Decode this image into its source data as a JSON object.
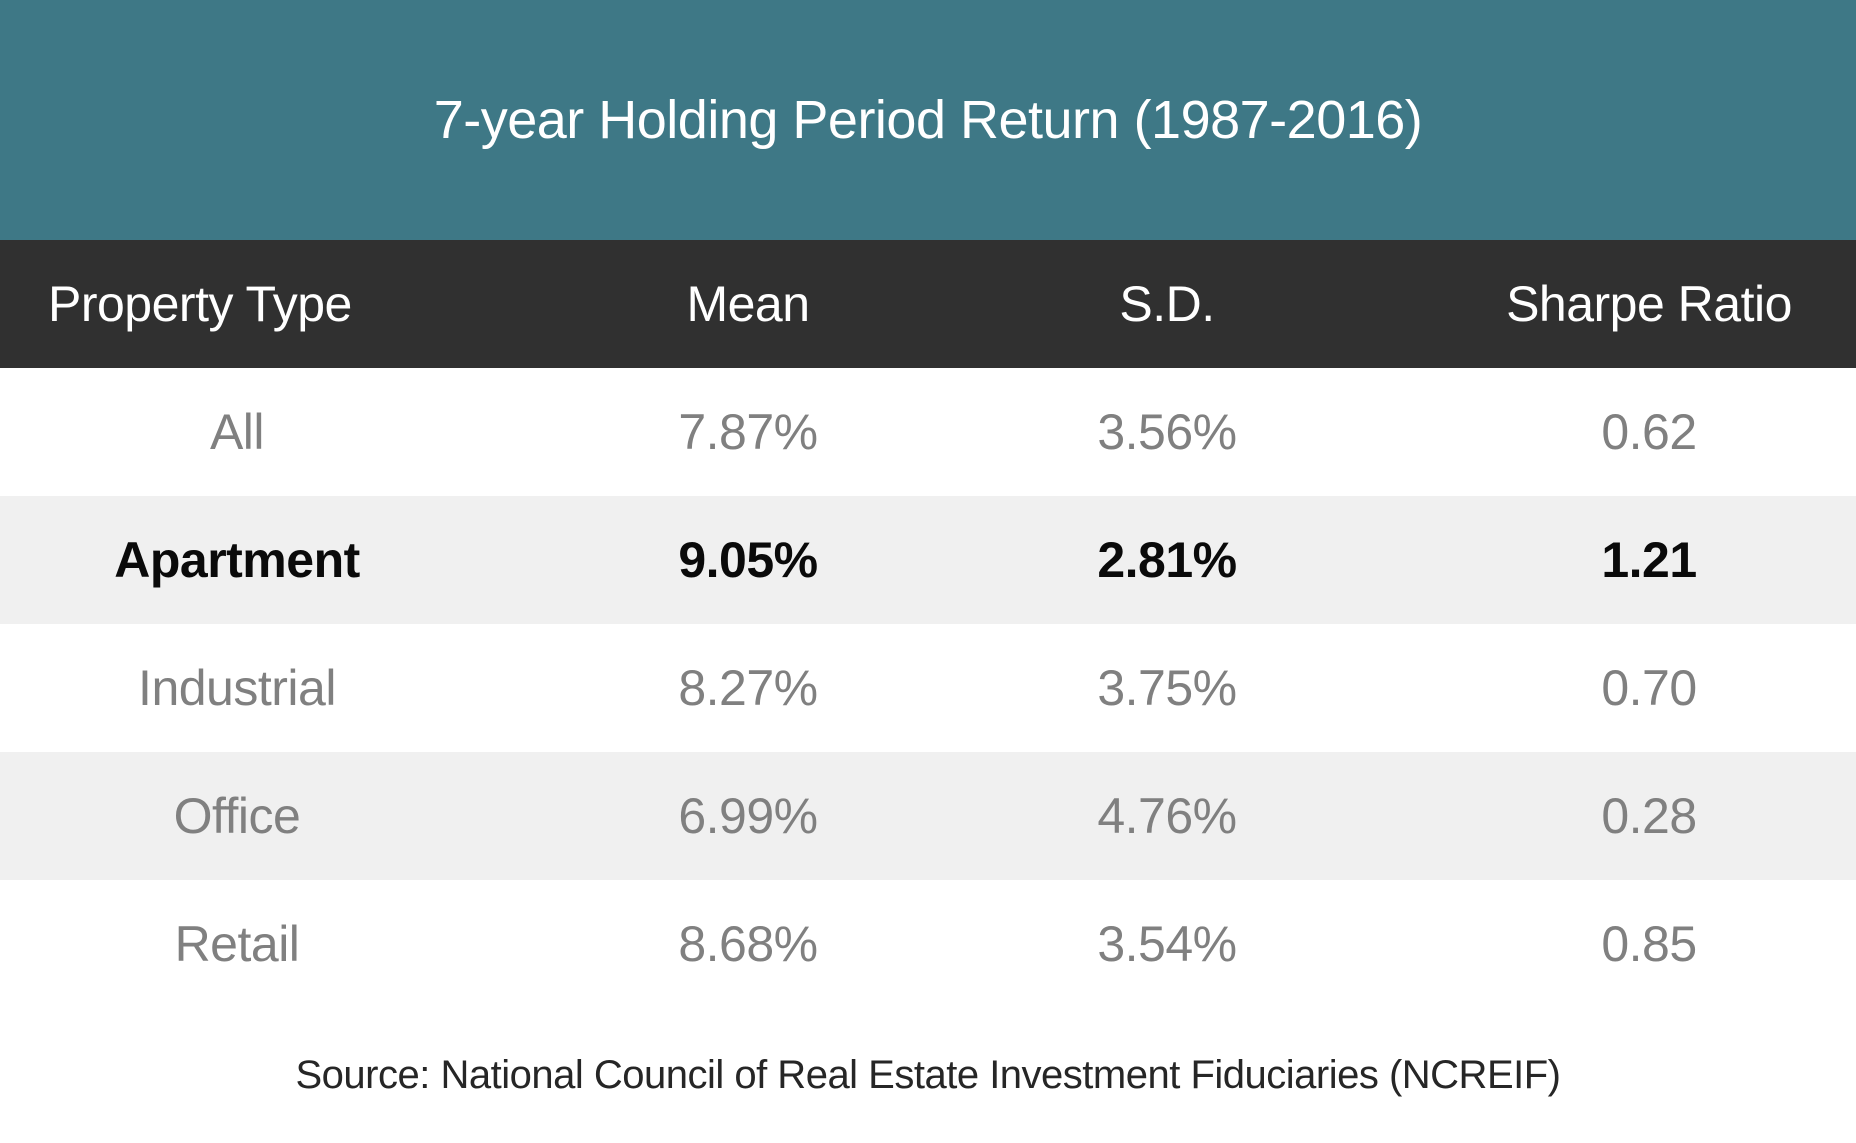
{
  "title": "7-year Holding Period Return (1987-2016)",
  "table": {
    "columns": [
      "Property Type",
      "Mean",
      "S.D.",
      "Sharpe Ratio"
    ],
    "rows": [
      {
        "property_type": "All",
        "mean": "7.87%",
        "sd": "3.56%",
        "sharpe_ratio": "0.62",
        "highlighted": false
      },
      {
        "property_type": "Apartment",
        "mean": "9.05%",
        "sd": "2.81%",
        "sharpe_ratio": "1.21",
        "highlighted": true
      },
      {
        "property_type": "Industrial",
        "mean": "8.27%",
        "sd": "3.75%",
        "sharpe_ratio": "0.70",
        "highlighted": false
      },
      {
        "property_type": "Office",
        "mean": "6.99%",
        "sd": "4.76%",
        "sharpe_ratio": "0.28",
        "highlighted": false
      },
      {
        "property_type": "Retail",
        "mean": "8.68%",
        "sd": "3.54%",
        "sharpe_ratio": "0.85",
        "highlighted": false
      }
    ]
  },
  "source": "Source: National Council of Real Estate Investment Fiduciaries (NCREIF)",
  "colors": {
    "title_band": "#3E7886",
    "header_row": "#303030",
    "row_shade": "#F0F0F0",
    "muted_text": "#808080",
    "highlight_text": "#0A0A0A"
  },
  "chart_data": {
    "type": "table",
    "title": "7-year Holding Period Return (1987-2016)",
    "columns": [
      "Property Type",
      "Mean",
      "S.D.",
      "Sharpe Ratio"
    ],
    "rows": [
      [
        "All",
        "7.87%",
        "3.56%",
        "0.62"
      ],
      [
        "Apartment",
        "9.05%",
        "2.81%",
        "1.21"
      ],
      [
        "Industrial",
        "8.27%",
        "3.75%",
        "0.70"
      ],
      [
        "Office",
        "6.99%",
        "4.76%",
        "0.28"
      ],
      [
        "Retail",
        "8.68%",
        "3.54%",
        "0.85"
      ]
    ],
    "highlighted_row": "Apartment",
    "source": "Source: National Council of Real Estate Investment Fiduciaries (NCREIF)"
  }
}
